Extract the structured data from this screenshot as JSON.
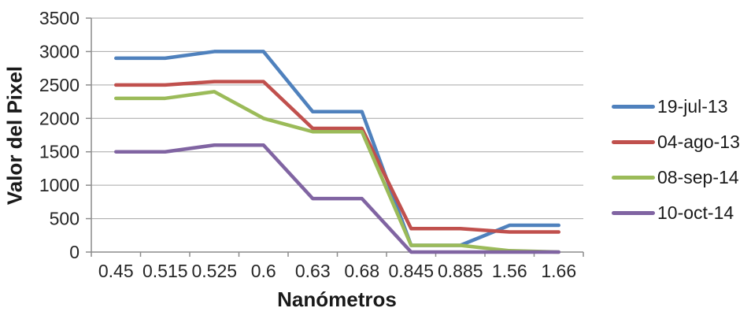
{
  "chart_data": {
    "type": "line",
    "title": "",
    "xlabel": "Nanómetros",
    "ylabel": "Valor del Pixel",
    "categories": [
      "0.45",
      "0.515",
      "0.525",
      "0.6",
      "0.63",
      "0.68",
      "0.845",
      "0.885",
      "1.56",
      "1.66"
    ],
    "y_ticks": [
      0,
      500,
      1000,
      1500,
      2000,
      2500,
      3000,
      3500
    ],
    "ylim": [
      0,
      3500
    ],
    "grid": true,
    "legend_position": "right",
    "series": [
      {
        "name": "19-jul-13",
        "color": "#4F81BD",
        "values": [
          2900,
          2900,
          3000,
          3000,
          2100,
          2100,
          100,
          100,
          400,
          400
        ]
      },
      {
        "name": "04-ago-13",
        "color": "#C0504D",
        "values": [
          2500,
          2500,
          2550,
          2550,
          1850,
          1850,
          350,
          350,
          300,
          300
        ]
      },
      {
        "name": "08-sep-14",
        "color": "#9BBB59",
        "values": [
          2300,
          2300,
          2400,
          2000,
          1800,
          1800,
          100,
          100,
          20,
          0
        ]
      },
      {
        "name": "10-oct-14",
        "color": "#8064A2",
        "values": [
          1500,
          1500,
          1600,
          1600,
          800,
          800,
          0,
          0,
          0,
          0
        ]
      }
    ]
  },
  "style": {
    "background": "#FFFFFF",
    "gridline_color": "#A6A6A6",
    "axis_color": "#8C8C8C",
    "text_color": "#262626"
  }
}
